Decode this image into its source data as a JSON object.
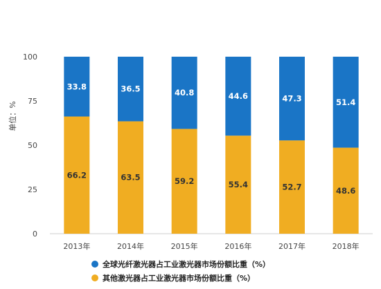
{
  "chart_data": {
    "type": "bar",
    "stacked": true,
    "categories": [
      "2013年",
      "2014年",
      "2015年",
      "2016年",
      "2017年",
      "2018年"
    ],
    "series": [
      {
        "name": "全球光纤激光器占工业激光器市场份额比重（%）",
        "values": [
          33.8,
          36.5,
          40.8,
          44.6,
          47.3,
          51.4
        ],
        "color": "#1a75c6",
        "label_color": "#ffffff"
      },
      {
        "name": "其他激光器占工业激光器市场份额比重（%）",
        "values": [
          66.2,
          63.5,
          59.2,
          55.4,
          52.7,
          48.6
        ],
        "color": "#f0ad22",
        "label_color": "#333333"
      }
    ],
    "ylabel": "单位：%",
    "yticks": [
      0,
      25,
      50,
      75,
      100
    ],
    "ylim": [
      0,
      100
    ],
    "grid": false,
    "legend_position": "bottom"
  }
}
